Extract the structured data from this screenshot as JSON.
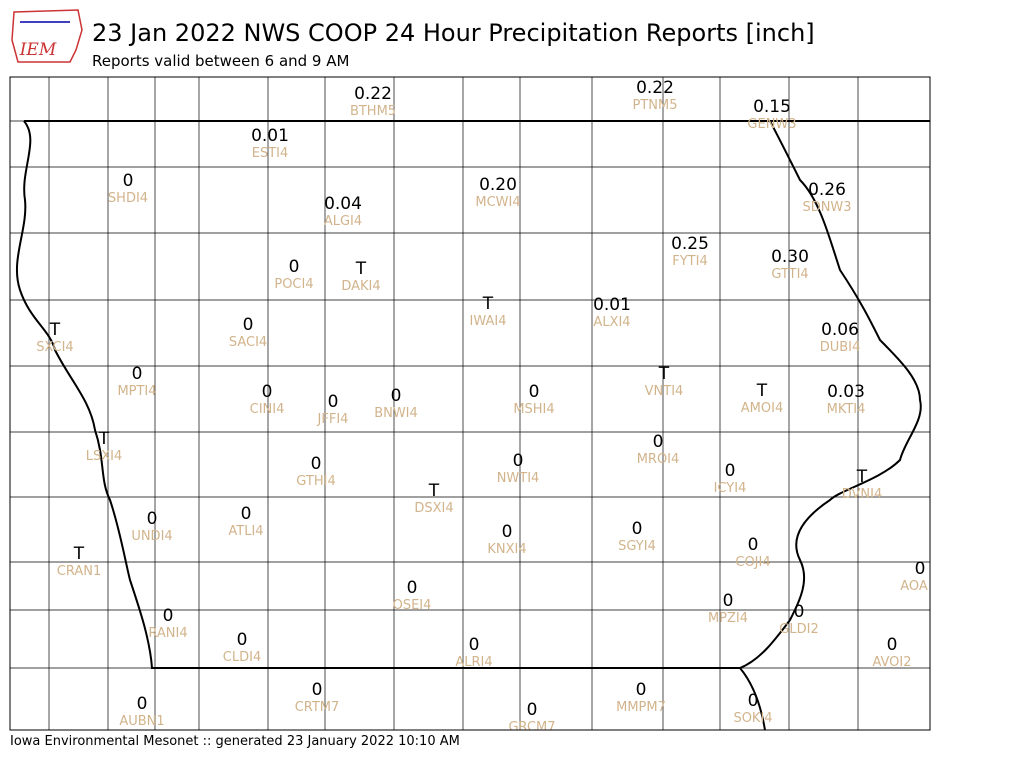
{
  "header": {
    "logo": "IEM",
    "title": "23 Jan 2022 NWS COOP 24 Hour Precipitation Reports [inch]",
    "subtitle": "Reports valid between 6 and 9 AM"
  },
  "footer": "Iowa Environmental Mesonet :: generated 23 January 2022 10:10 AM",
  "stations": [
    {
      "value": "0.22",
      "id": "BTHM5"
    },
    {
      "value": "0.22",
      "id": "PTNM5"
    },
    {
      "value": "0.15",
      "id": "GENW3"
    },
    {
      "value": "0.01",
      "id": "ESTI4"
    },
    {
      "value": "0",
      "id": "SHDI4"
    },
    {
      "value": "0.04",
      "id": "ALGI4"
    },
    {
      "value": "0.20",
      "id": "MCWI4"
    },
    {
      "value": "0.26",
      "id": "SDNW3"
    },
    {
      "value": "0.25",
      "id": "FYTI4"
    },
    {
      "value": "0.30",
      "id": "GTTI4"
    },
    {
      "value": "0",
      "id": "POCI4"
    },
    {
      "value": "T",
      "id": "DAKI4"
    },
    {
      "value": "T",
      "id": "IWAI4"
    },
    {
      "value": "0.01",
      "id": "ALXI4"
    },
    {
      "value": "0.06",
      "id": "DUBI4"
    },
    {
      "value": "T",
      "id": "SXCI4"
    },
    {
      "value": "0",
      "id": "SACI4"
    },
    {
      "value": "0",
      "id": "MPTI4"
    },
    {
      "value": "0",
      "id": "CINI4"
    },
    {
      "value": "0",
      "id": "JFFI4"
    },
    {
      "value": "0",
      "id": "BNWI4"
    },
    {
      "value": "0",
      "id": "MSHI4"
    },
    {
      "value": "T",
      "id": "VNTI4"
    },
    {
      "value": "T",
      "id": "AMOI4"
    },
    {
      "value": "0.03",
      "id": "MKTI4"
    },
    {
      "value": "T",
      "id": "LSXI4"
    },
    {
      "value": "0",
      "id": "MROI4"
    },
    {
      "value": "0",
      "id": "GTHI4"
    },
    {
      "value": "0",
      "id": "NWTI4"
    },
    {
      "value": "0",
      "id": "ICYI4"
    },
    {
      "value": "T",
      "id": "DVNI4"
    },
    {
      "value": "T",
      "id": "DSXI4"
    },
    {
      "value": "0",
      "id": "UNDI4"
    },
    {
      "value": "0",
      "id": "ATLI4"
    },
    {
      "value": "0",
      "id": "KNXI4"
    },
    {
      "value": "0",
      "id": "SGYI4"
    },
    {
      "value": "T",
      "id": "CRAN1"
    },
    {
      "value": "0",
      "id": "COJI4"
    },
    {
      "value": "0",
      "id": "AOA"
    },
    {
      "value": "0",
      "id": "OSEI4"
    },
    {
      "value": "0",
      "id": "MPZI4"
    },
    {
      "value": "0",
      "id": "GLDI2"
    },
    {
      "value": "0",
      "id": "RANI4"
    },
    {
      "value": "0",
      "id": "CLDI4"
    },
    {
      "value": "0",
      "id": "AVOI2"
    },
    {
      "value": "0",
      "id": "ALRI4"
    },
    {
      "value": "0",
      "id": "CRTM7"
    },
    {
      "value": "0",
      "id": "MMPM7"
    },
    {
      "value": "0",
      "id": "AUBN1"
    },
    {
      "value": "0",
      "id": "GRCM7"
    },
    {
      "value": "0",
      "id": "SOKI4"
    }
  ]
}
